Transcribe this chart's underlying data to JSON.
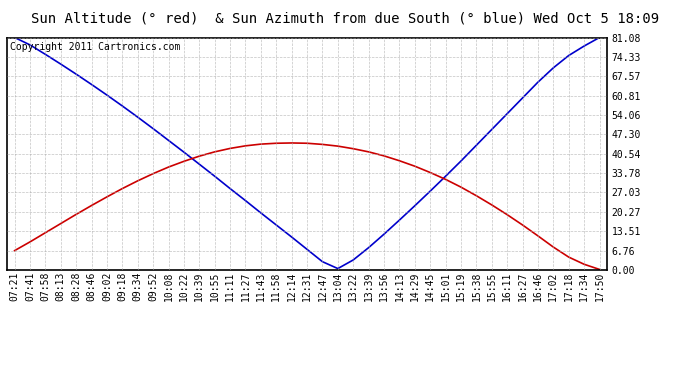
{
  "title": "Sun Altitude (° red)  & Sun Azimuth from due South (° blue) Wed Oct 5 18:09",
  "copyright": "Copyright 2011 Cartronics.com",
  "yticks": [
    0.0,
    6.76,
    13.51,
    20.27,
    27.03,
    33.78,
    40.54,
    47.3,
    54.06,
    60.81,
    67.57,
    74.33,
    81.08
  ],
  "xtick_labels": [
    "07:21",
    "07:41",
    "07:58",
    "08:13",
    "08:28",
    "08:46",
    "09:02",
    "09:18",
    "09:34",
    "09:52",
    "10:08",
    "10:22",
    "10:39",
    "10:55",
    "11:11",
    "11:27",
    "11:43",
    "11:58",
    "12:14",
    "12:31",
    "12:47",
    "13:04",
    "13:22",
    "13:39",
    "13:56",
    "14:13",
    "14:29",
    "14:45",
    "15:01",
    "15:19",
    "15:38",
    "15:55",
    "16:11",
    "16:27",
    "16:46",
    "17:02",
    "17:18",
    "17:34",
    "17:50"
  ],
  "ylim": [
    0.0,
    81.08
  ],
  "bg_color": "#ffffff",
  "grid_color": "#aaaaaa",
  "blue_color": "#0000cc",
  "red_color": "#cc0000",
  "title_fontsize": 10,
  "copyright_fontsize": 7,
  "tick_fontsize": 7,
  "azimuth_data": [
    81.08,
    78.5,
    75.2,
    71.8,
    68.3,
    64.7,
    61.0,
    57.2,
    53.3,
    49.3,
    45.2,
    41.1,
    36.9,
    32.7,
    28.4,
    24.2,
    19.9,
    15.7,
    11.5,
    7.2,
    2.9,
    0.5,
    3.5,
    7.8,
    12.5,
    17.4,
    22.4,
    27.5,
    32.7,
    38.0,
    43.5,
    49.0,
    54.5,
    60.0,
    65.5,
    70.5,
    74.8,
    78.1,
    81.08
  ],
  "altitude_data": [
    6.76,
    9.8,
    13.0,
    16.2,
    19.4,
    22.5,
    25.5,
    28.4,
    31.1,
    33.6,
    35.9,
    37.9,
    39.7,
    41.2,
    42.4,
    43.3,
    43.9,
    44.2,
    44.3,
    44.2,
    43.8,
    43.2,
    42.3,
    41.2,
    39.8,
    38.1,
    36.2,
    34.0,
    31.6,
    28.9,
    25.9,
    22.7,
    19.3,
    15.7,
    11.9,
    8.0,
    4.5,
    2.0,
    0.2
  ]
}
